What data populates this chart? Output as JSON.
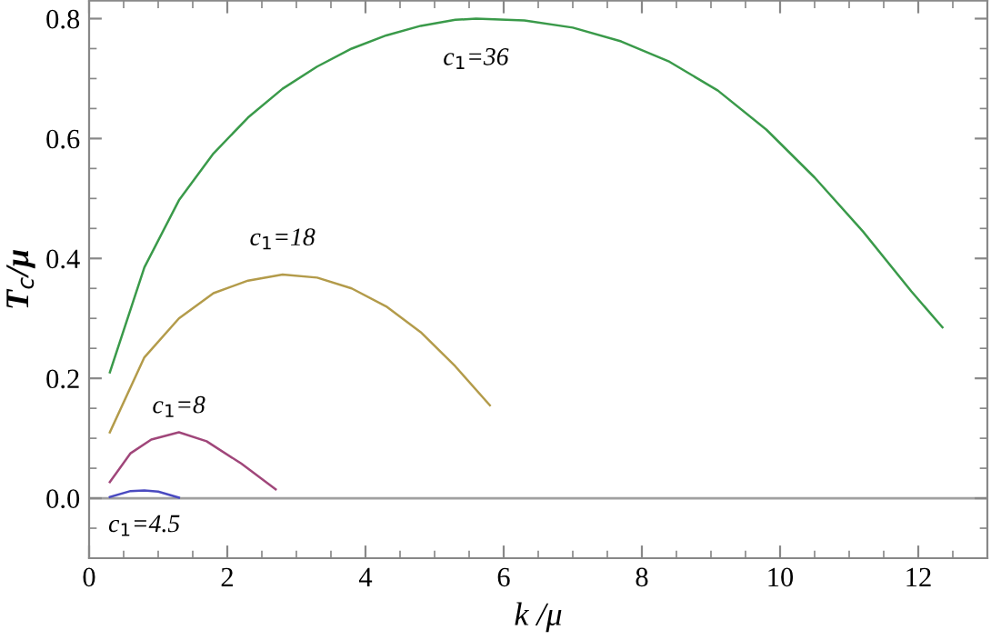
{
  "chart_data": {
    "type": "line",
    "xlabel": "k /μ",
    "ylabel": "T$_{c}$/μ",
    "xlim": [
      0,
      13
    ],
    "ylim": [
      -0.1,
      0.83
    ],
    "xticks": [
      0,
      2,
      4,
      6,
      8,
      10,
      12
    ],
    "yticks": [
      {
        "value": 0,
        "label": "0.0"
      },
      0.2,
      0.4,
      0.6,
      0.8
    ],
    "grid": false,
    "legend": false,
    "marker": "none",
    "line_style": "solid",
    "ref_lines": [
      {
        "axis": "y",
        "value": 0,
        "color": "#a0a0a0"
      }
    ],
    "series": [
      {
        "name": "c$_{1}$=36",
        "color": "#3a9a4a",
        "x": [
          0.3,
          0.8,
          1.3,
          1.8,
          2.3,
          2.8,
          3.3,
          3.8,
          4.3,
          4.8,
          5.3,
          5.6,
          6.3,
          7,
          7.7,
          8.4,
          9.1,
          9.8,
          10.5,
          11.2,
          11.9,
          12.35
        ],
        "values": [
          0.21,
          0.385,
          0.497,
          0.575,
          0.635,
          0.683,
          0.72,
          0.75,
          0.772,
          0.788,
          0.798,
          0.8,
          0.797,
          0.785,
          0.762,
          0.728,
          0.68,
          0.615,
          0.535,
          0.445,
          0.345,
          0.285
        ]
      },
      {
        "name": "c$_{1}$=18",
        "color": "#b39b4a",
        "x": [
          0.3,
          0.8,
          1.3,
          1.8,
          2.3,
          2.8,
          3.3,
          3.8,
          4.3,
          4.8,
          5.3,
          5.8
        ],
        "values": [
          0.11,
          0.235,
          0.3,
          0.342,
          0.363,
          0.373,
          0.368,
          0.35,
          0.32,
          0.277,
          0.22,
          0.155
        ]
      },
      {
        "name": "c$_{1}$=8",
        "color": "#a0467a",
        "x": [
          0.3,
          0.6,
          0.9,
          1.3,
          1.7,
          2.2,
          2.7
        ],
        "values": [
          0.027,
          0.075,
          0.098,
          0.11,
          0.095,
          0.058,
          0.015
        ]
      },
      {
        "name": "c$_{1}$=4.5",
        "color": "#4a4ac0",
        "x": [
          0.3,
          0.6,
          0.8,
          1.0,
          1.3
        ],
        "values": [
          0.002,
          0.012,
          0.013,
          0.011,
          0.001
        ]
      }
    ]
  }
}
